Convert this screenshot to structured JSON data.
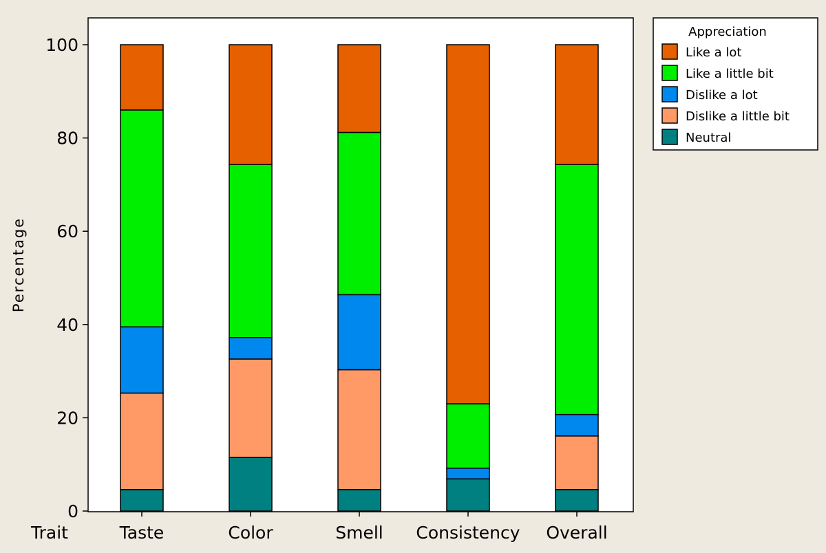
{
  "chart_data": {
    "type": "bar",
    "stacked": true,
    "title": "",
    "ylabel": "Percentage",
    "xlabel": "",
    "xaxis_prefix": "Trait",
    "ylim": [
      0,
      100
    ],
    "yticks": [
      0,
      20,
      40,
      60,
      80,
      100
    ],
    "grid": false,
    "categories": [
      "Taste",
      "Color",
      "Smell",
      "Consistency",
      "Overall"
    ],
    "series": [
      {
        "name": "Neutral",
        "color": "#008080",
        "values": [
          4.6,
          11.5,
          4.6,
          6.9,
          4.6
        ]
      },
      {
        "name": "Dislike a little bit",
        "color": "#ff9966",
        "values": [
          20.7,
          21.1,
          25.7,
          0,
          11.5
        ]
      },
      {
        "name": "Dislike a lot",
        "color": "#0088ee",
        "values": [
          14.2,
          4.6,
          16.1,
          2.3,
          4.6
        ]
      },
      {
        "name": "Like a little bit",
        "color": "#00ee00",
        "values": [
          46.5,
          37.1,
          34.8,
          13.8,
          53.6
        ]
      },
      {
        "name": "Like a lot",
        "color": "#e66000",
        "values": [
          14.0,
          25.7,
          18.8,
          77.0,
          25.7
        ]
      }
    ],
    "legend": {
      "title": "Appreciation",
      "placement": "top-right",
      "order": [
        "Like a lot",
        "Like a little bit",
        "Dislike a lot",
        "Dislike a little bit",
        "Neutral"
      ]
    }
  }
}
